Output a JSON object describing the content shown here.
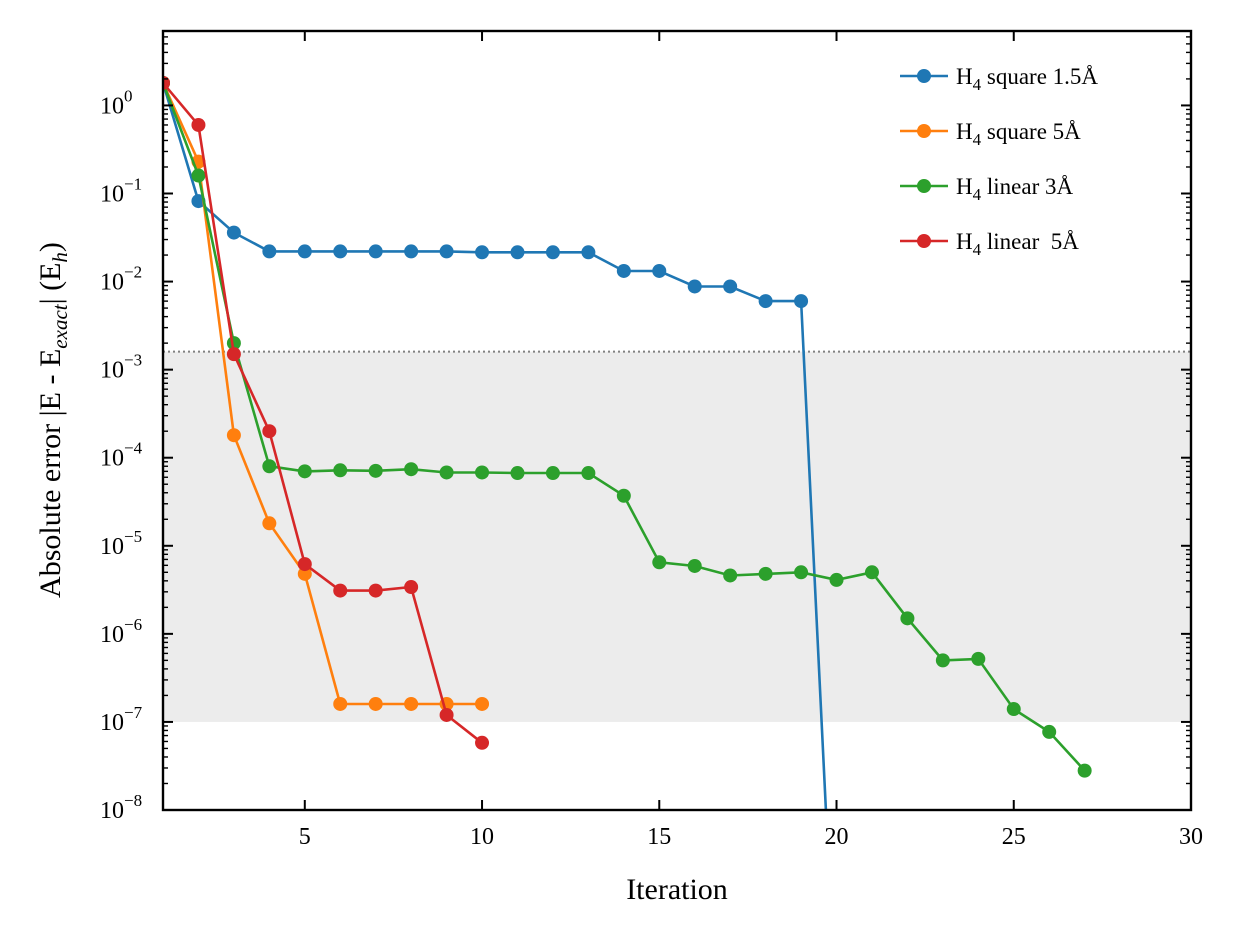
{
  "chart_data": {
    "type": "line",
    "xlabel": "Iteration",
    "ylabel": "Absolute error |E - E",
    "ylabel_sub": "exact",
    "ylabel_mid": "| (E",
    "ylabel_sub2": "h",
    "ylabel_end": ")",
    "xlim": [
      1,
      30
    ],
    "ylim": [
      1e-08,
      7
    ],
    "yscale": "log",
    "x_ticks": [
      5,
      10,
      15,
      20,
      25,
      30
    ],
    "y_ticks": [
      {
        "value": 1,
        "base": "10",
        "exp": "0"
      },
      {
        "value": 0.1,
        "base": "10",
        "exp": "−1"
      },
      {
        "value": 0.01,
        "base": "10",
        "exp": "−2"
      },
      {
        "value": 0.001,
        "base": "10",
        "exp": "−3"
      },
      {
        "value": 0.0001,
        "base": "10",
        "exp": "−4"
      },
      {
        "value": 1e-05,
        "base": "10",
        "exp": "−5"
      },
      {
        "value": 1e-06,
        "base": "10",
        "exp": "−6"
      },
      {
        "value": 1e-07,
        "base": "10",
        "exp": "−7"
      },
      {
        "value": 1e-08,
        "base": "10",
        "exp": "−8"
      }
    ],
    "shaded_band": {
      "y_low": 1e-07,
      "y_high": 0.0016,
      "color": "#ececec"
    },
    "threshold_line": {
      "y": 0.0016,
      "color": "#808080",
      "style": "dotted"
    },
    "legend_position": "top-right",
    "series": [
      {
        "name_main": "H",
        "name_sub": "4",
        "name_rest": " square 1.5Å",
        "color": "#1f77b4",
        "x": [
          1,
          2,
          3,
          4,
          5,
          6,
          7,
          8,
          9,
          10,
          11,
          12,
          13,
          14,
          15,
          16,
          17,
          18,
          19
        ],
        "y": [
          1.8,
          0.082,
          0.036,
          0.022,
          0.022,
          0.022,
          0.022,
          0.022,
          0.022,
          0.0215,
          0.0215,
          0.0215,
          0.0215,
          0.0132,
          0.0132,
          0.0088,
          0.0088,
          0.006,
          0.006
        ],
        "tail_to": {
          "x": 19.7,
          "y": 1e-08
        }
      },
      {
        "name_main": "H",
        "name_sub": "4",
        "name_rest": " square 5Å",
        "color": "#ff7f0e",
        "x": [
          1,
          2,
          3,
          4,
          5,
          6,
          7,
          8,
          9,
          10
        ],
        "y": [
          1.8,
          0.23,
          0.00018,
          1.8e-05,
          4.8e-06,
          1.6e-07,
          1.6e-07,
          1.6e-07,
          1.6e-07,
          1.6e-07
        ]
      },
      {
        "name_main": "H",
        "name_sub": "4",
        "name_rest": " linear 3Å",
        "color": "#2ca02c",
        "x": [
          1,
          2,
          3,
          4,
          5,
          6,
          7,
          8,
          9,
          10,
          11,
          12,
          13,
          14,
          15,
          16,
          17,
          18,
          19,
          20,
          21,
          22,
          23,
          24,
          25,
          26,
          27
        ],
        "y": [
          1.8,
          0.16,
          0.002,
          8e-05,
          7e-05,
          7.2e-05,
          7.1e-05,
          7.4e-05,
          6.8e-05,
          6.8e-05,
          6.7e-05,
          6.7e-05,
          6.7e-05,
          3.7e-05,
          6.5e-06,
          5.9e-06,
          4.6e-06,
          4.8e-06,
          5e-06,
          4.1e-06,
          5e-06,
          1.5e-06,
          5e-07,
          5.2e-07,
          1.4e-07,
          7.7e-08,
          2.8e-08
        ]
      },
      {
        "name_main": "H",
        "name_sub": "4",
        "name_rest": " linear  5Å",
        "color": "#d62728",
        "x": [
          1,
          2,
          3,
          4,
          5,
          6,
          7,
          8,
          9,
          10
        ],
        "y": [
          1.8,
          0.6,
          0.0015,
          0.0002,
          6.2e-06,
          3.1e-06,
          3.1e-06,
          3.4e-06,
          1.2e-07,
          5.8e-08
        ]
      }
    ]
  }
}
